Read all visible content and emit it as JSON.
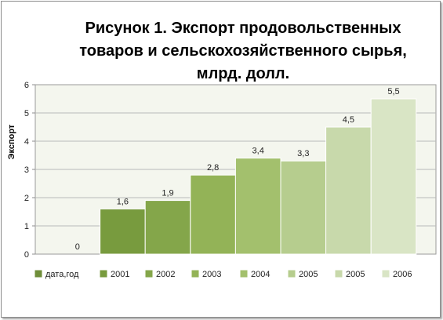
{
  "chart_data": {
    "type": "bar",
    "title": "Рисунок 1. Экспорт продовольственных товаров и сельскохозяйственного сырья, млрд. долл.",
    "title_lines": [
      "Рисунок 1. Экспорт продовольственных",
      "товаров и сельскохозяйственного сырья,",
      "млрд. долл."
    ],
    "ylabel": "Экспорт",
    "xlabel": "",
    "ylim": [
      0,
      6
    ],
    "yticks": [
      "0",
      "1",
      "2",
      "3",
      "4",
      "5",
      "6"
    ],
    "grid": true,
    "legend_position": "bottom",
    "series": [
      {
        "name": "дата,год",
        "value": 0,
        "label": "0",
        "color": "#6f8e3a"
      },
      {
        "name": "2001",
        "value": 1.6,
        "label": "1,6",
        "color": "#789b3e"
      },
      {
        "name": "2002",
        "value": 1.9,
        "label": "1,9",
        "color": "#84a64a"
      },
      {
        "name": "2003",
        "value": 2.8,
        "label": "2,8",
        "color": "#93b357"
      },
      {
        "name": "2004",
        "value": 3.4,
        "label": "3,4",
        "color": "#a3c06d"
      },
      {
        "name": "2005",
        "value": 3.3,
        "label": "3,3",
        "color": "#b6cd8e"
      },
      {
        "name": "2005",
        "value": 4.5,
        "label": "4,5",
        "color": "#c8d9ab"
      },
      {
        "name": "2006",
        "value": 5.5,
        "label": "5,5",
        "color": "#d9e5c5"
      }
    ]
  }
}
